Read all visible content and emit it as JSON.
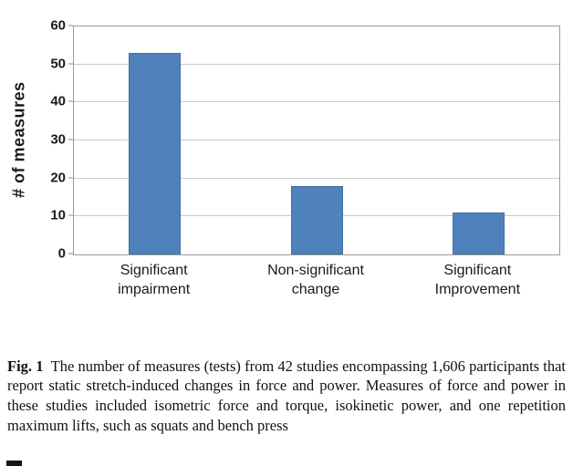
{
  "chart_data": {
    "type": "bar",
    "categories": [
      "Significant\nimpairment",
      "Non-significant\nchange",
      "Significant\nImprovement"
    ],
    "values": [
      53,
      18,
      11
    ],
    "title": "",
    "xlabel": "",
    "ylabel": "# of measures",
    "ylim": [
      0,
      60
    ],
    "ytick_step": 10,
    "bar_color": "#4f81bd",
    "grid": true,
    "legend": "none"
  },
  "caption": {
    "label": "Fig. 1",
    "text": "The number of measures (tests) from 42 studies encompassing 1,606 participants that report static stretch-induced changes in force and power. Measures of force and power in these studies included isometric force and torque, isokinetic power, and one repetition maximum lifts, such as squats and bench press"
  }
}
